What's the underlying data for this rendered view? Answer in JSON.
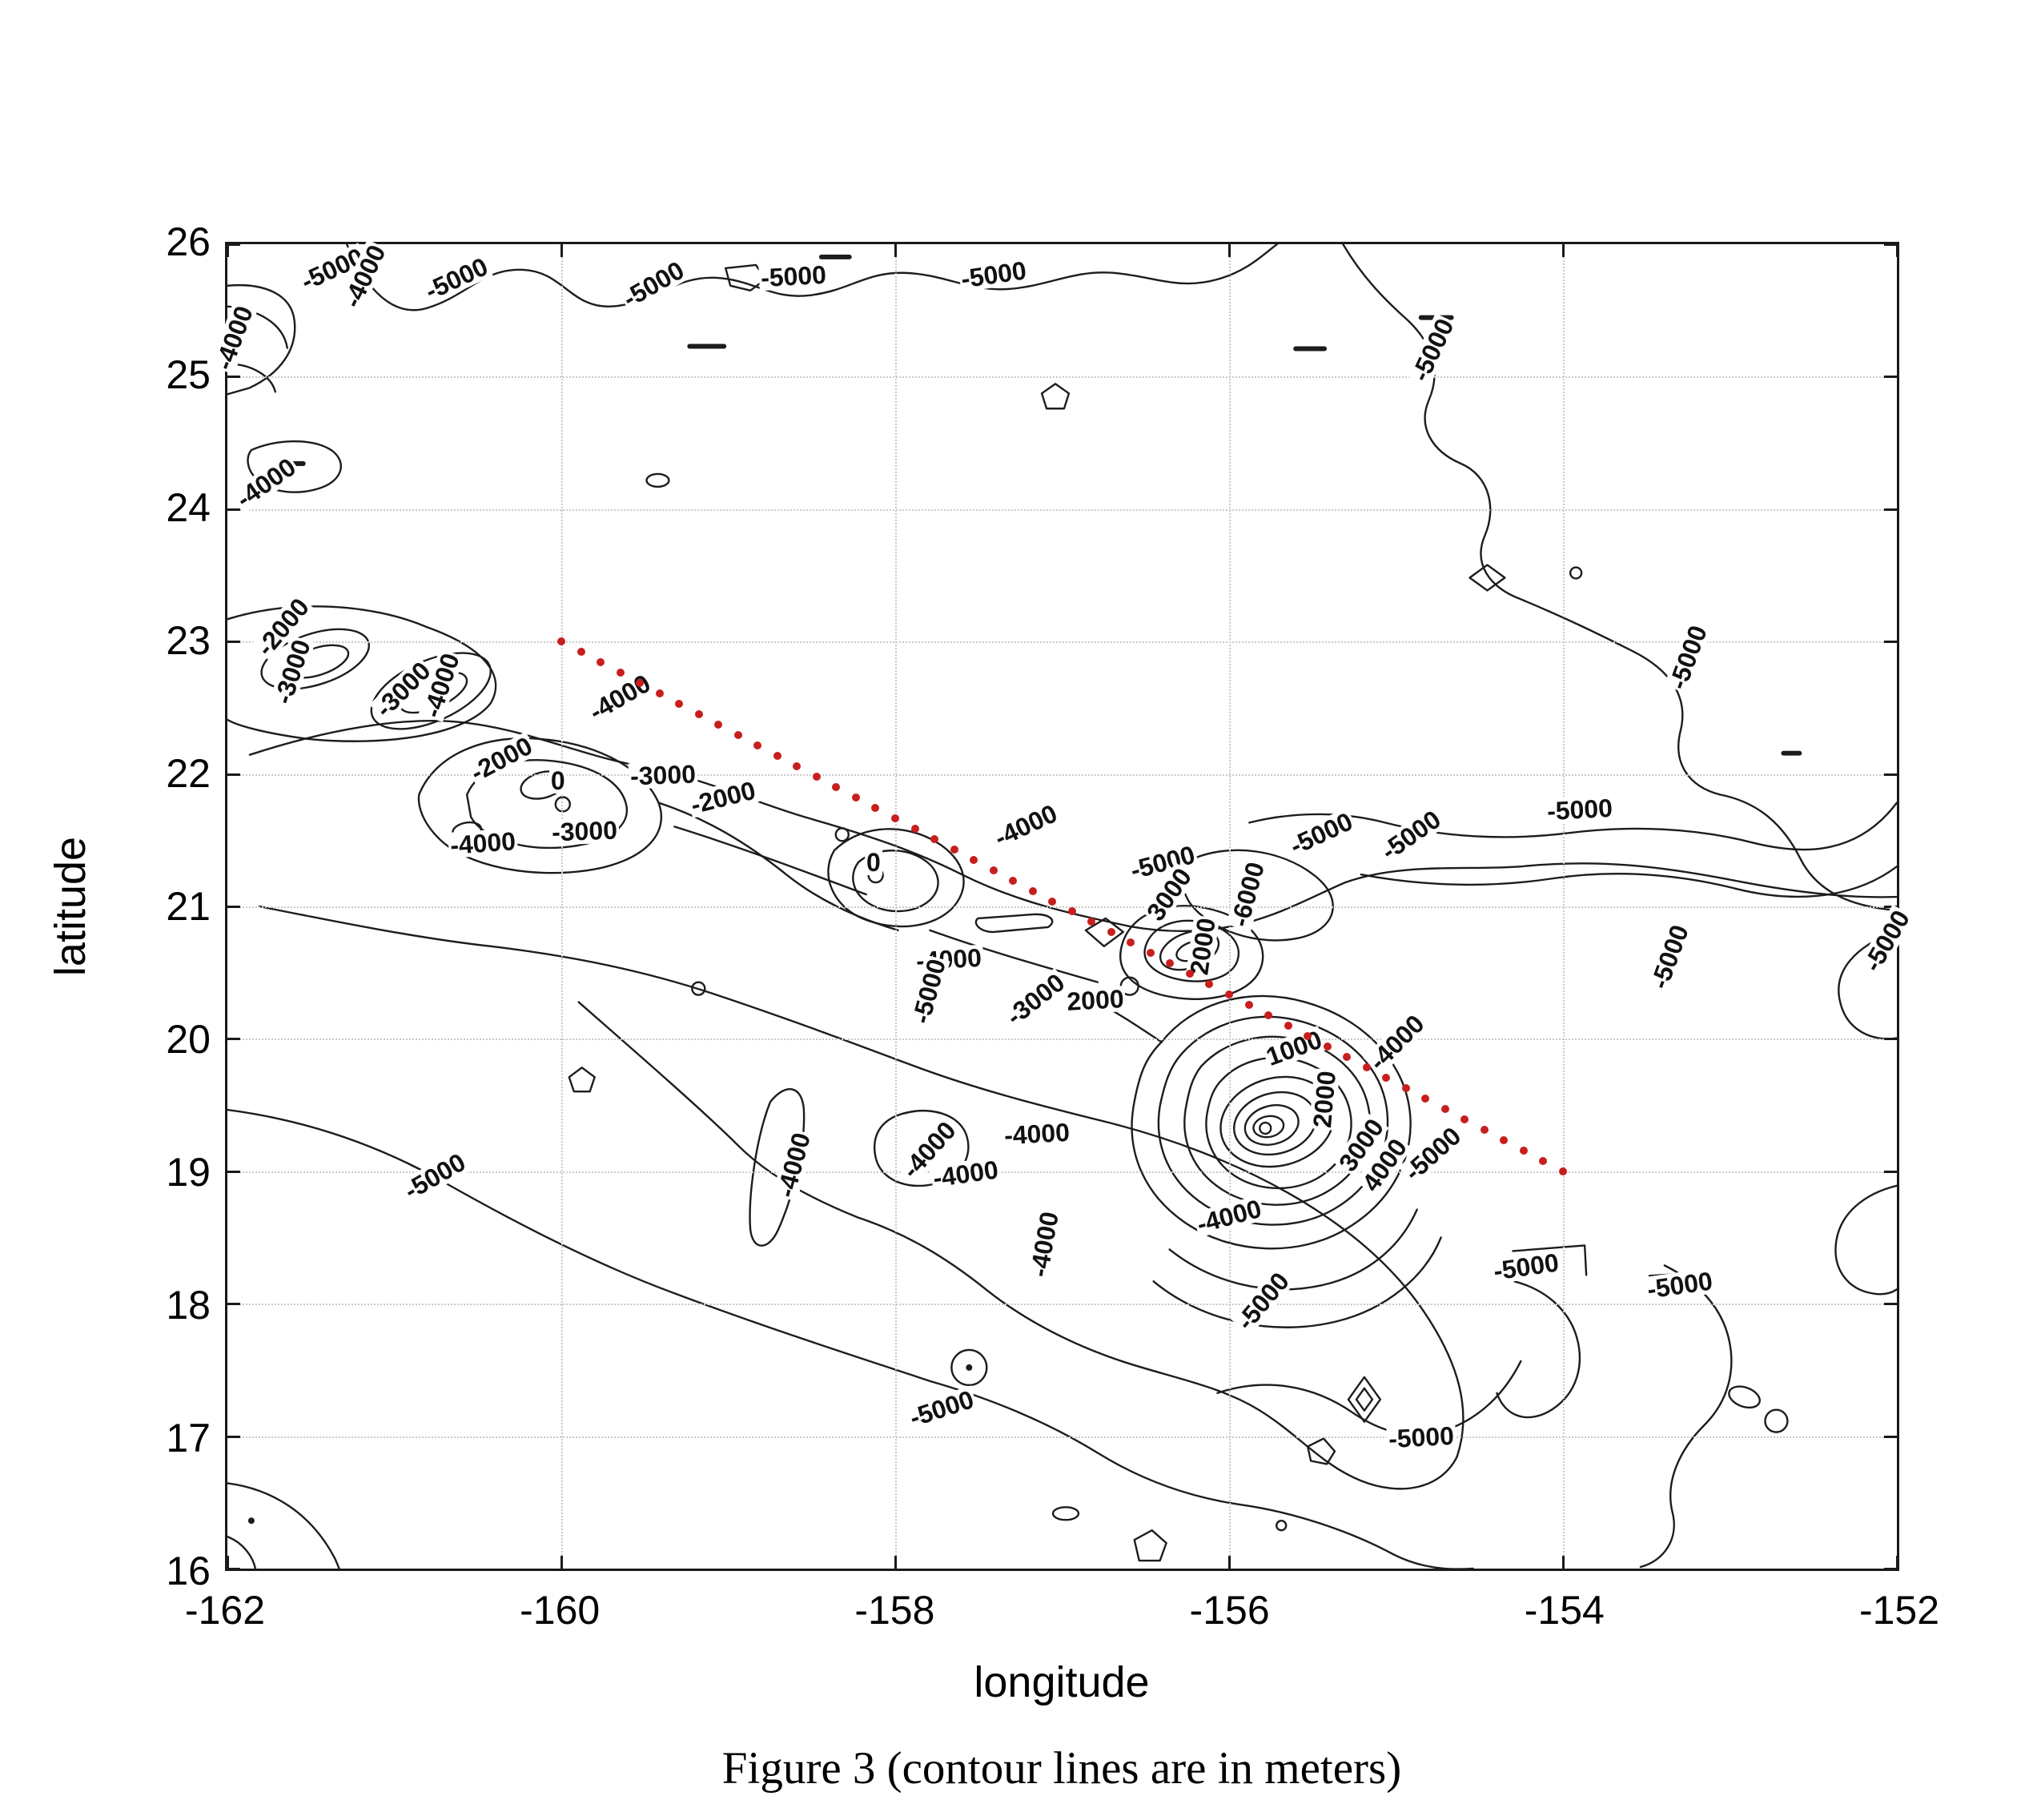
{
  "figure": {
    "caption": "Figure 3 (contour lines are in meters)"
  },
  "chart_data": {
    "type": "contour",
    "title": "",
    "xlabel": "longitude",
    "ylabel": "latitude",
    "xlim": [
      -162,
      -152
    ],
    "ylim": [
      16,
      26
    ],
    "x_ticks": [
      -162,
      -160,
      -158,
      -156,
      -154,
      -152
    ],
    "y_ticks": [
      16,
      17,
      18,
      19,
      20,
      21,
      22,
      23,
      24,
      25,
      26
    ],
    "grid": true,
    "unit": "meters",
    "contour_color": "#1c1c1c",
    "grid_color": "#c9c9c9",
    "labeled_levels": [
      -6000,
      -5000,
      -4000,
      -3000,
      -2000,
      0,
      1000,
      2000,
      3000,
      4000
    ],
    "section_line": {
      "color": "#c81e1e",
      "style": "dotted",
      "from": {
        "lon": -160,
        "lat": 23
      },
      "to": {
        "lon": -154,
        "lat": 19
      },
      "num_dots": 52
    },
    "contour_labels": [
      {
        "text": "-5000",
        "lon": -161.37,
        "lat": 25.81,
        "rot": -25
      },
      {
        "text": "-4000",
        "lon": -161.18,
        "lat": 25.76,
        "rot": -65
      },
      {
        "text": "-5000",
        "lon": -160.63,
        "lat": 25.74,
        "rot": -25
      },
      {
        "text": "-5000",
        "lon": -159.45,
        "lat": 25.7,
        "rot": -30
      },
      {
        "text": "-5000",
        "lon": -158.61,
        "lat": 25.76,
        "rot": -3
      },
      {
        "text": "-5000",
        "lon": -157.41,
        "lat": 25.77,
        "rot": -8
      },
      {
        "text": "-5000",
        "lon": -154.78,
        "lat": 25.2,
        "rot": -65
      },
      {
        "text": "-5000",
        "lon": -153.25,
        "lat": 22.88,
        "rot": -70
      },
      {
        "text": "-4000",
        "lon": -161.96,
        "lat": 25.29,
        "rot": -70
      },
      {
        "text": "-4000",
        "lon": -161.77,
        "lat": 24.2,
        "rot": -35
      },
      {
        "text": "-2000",
        "lon": -161.67,
        "lat": 23.11,
        "rot": -50
      },
      {
        "text": "-3000",
        "lon": -161.61,
        "lat": 22.77,
        "rot": -72
      },
      {
        "text": "-3000",
        "lon": -160.95,
        "lat": 22.64,
        "rot": -45
      },
      {
        "text": "-4000",
        "lon": -160.72,
        "lat": 22.67,
        "rot": -72
      },
      {
        "text": "-2000",
        "lon": -160.36,
        "lat": 22.11,
        "rot": -28
      },
      {
        "text": "0",
        "lon": -160.02,
        "lat": 21.95,
        "rot": 0
      },
      {
        "text": "-4000",
        "lon": -159.65,
        "lat": 22.58,
        "rot": -30
      },
      {
        "text": "-3000",
        "lon": -159.86,
        "lat": 21.57,
        "rot": -2
      },
      {
        "text": "-4000",
        "lon": -160.47,
        "lat": 21.48,
        "rot": -4
      },
      {
        "text": "-3000",
        "lon": -159.39,
        "lat": 21.99,
        "rot": -2
      },
      {
        "text": "-2000",
        "lon": -159.03,
        "lat": 21.82,
        "rot": -14
      },
      {
        "text": "0",
        "lon": -158.13,
        "lat": 21.33,
        "rot": 0
      },
      {
        "text": "-4000",
        "lon": -157.68,
        "lat": 20.6,
        "rot": -3
      },
      {
        "text": "-5000",
        "lon": -157.8,
        "lat": 20.36,
        "rot": -75
      },
      {
        "text": "-3000",
        "lon": -157.16,
        "lat": 20.3,
        "rot": -38
      },
      {
        "text": "2000",
        "lon": -156.8,
        "lat": 20.29,
        "rot": -3
      },
      {
        "text": "-4000",
        "lon": -157.22,
        "lat": 21.61,
        "rot": -25
      },
      {
        "text": "-5000",
        "lon": -156.4,
        "lat": 21.33,
        "rot": -15
      },
      {
        "text": "3000",
        "lon": -156.36,
        "lat": 21.09,
        "rot": -55
      },
      {
        "text": "-6000",
        "lon": -155.89,
        "lat": 21.09,
        "rot": -75
      },
      {
        "text": "2000",
        "lon": -156.16,
        "lat": 20.7,
        "rot": -82
      },
      {
        "text": "-5000",
        "lon": -155.45,
        "lat": 21.55,
        "rot": -25
      },
      {
        "text": "-5000",
        "lon": -154.91,
        "lat": 21.54,
        "rot": -35
      },
      {
        "text": "-5000",
        "lon": -153.9,
        "lat": 21.73,
        "rot": -3
      },
      {
        "text": "-5000",
        "lon": -153.36,
        "lat": 20.62,
        "rot": -70
      },
      {
        "text": "-4000",
        "lon": -155.0,
        "lat": 19.97,
        "rot": -45
      },
      {
        "text": "1000",
        "lon": -155.61,
        "lat": 19.93,
        "rot": -20
      },
      {
        "text": "2000",
        "lon": -155.43,
        "lat": 19.54,
        "rot": -85
      },
      {
        "text": "3000",
        "lon": -155.21,
        "lat": 19.2,
        "rot": -55
      },
      {
        "text": "4000",
        "lon": -155.07,
        "lat": 19.05,
        "rot": -55
      },
      {
        "text": "-5000",
        "lon": -154.78,
        "lat": 19.13,
        "rot": -42
      },
      {
        "text": "-4000",
        "lon": -156.0,
        "lat": 18.66,
        "rot": -15
      },
      {
        "text": "-5000",
        "lon": -155.8,
        "lat": 18.02,
        "rot": -50
      },
      {
        "text": "-5000",
        "lon": -154.22,
        "lat": 18.28,
        "rot": -8
      },
      {
        "text": "-5000",
        "lon": -153.3,
        "lat": 18.14,
        "rot": -8
      },
      {
        "text": "-5000",
        "lon": -157.72,
        "lat": 17.21,
        "rot": -18
      },
      {
        "text": "-5000",
        "lon": -154.85,
        "lat": 16.99,
        "rot": -3
      },
      {
        "text": "-5000",
        "lon": -160.76,
        "lat": 18.96,
        "rot": -30
      },
      {
        "text": "-4000",
        "lon": -158.61,
        "lat": 19.05,
        "rot": -75
      },
      {
        "text": "-4000",
        "lon": -157.8,
        "lat": 19.16,
        "rot": -48
      },
      {
        "text": "-4000",
        "lon": -157.58,
        "lat": 18.98,
        "rot": -8
      },
      {
        "text": "-4000",
        "lon": -157.15,
        "lat": 19.28,
        "rot": -3
      },
      {
        "text": "-4000",
        "lon": -157.11,
        "lat": 18.45,
        "rot": -80
      },
      {
        "text": "-5000",
        "lon": -152.06,
        "lat": 20.74,
        "rot": -60
      }
    ]
  }
}
